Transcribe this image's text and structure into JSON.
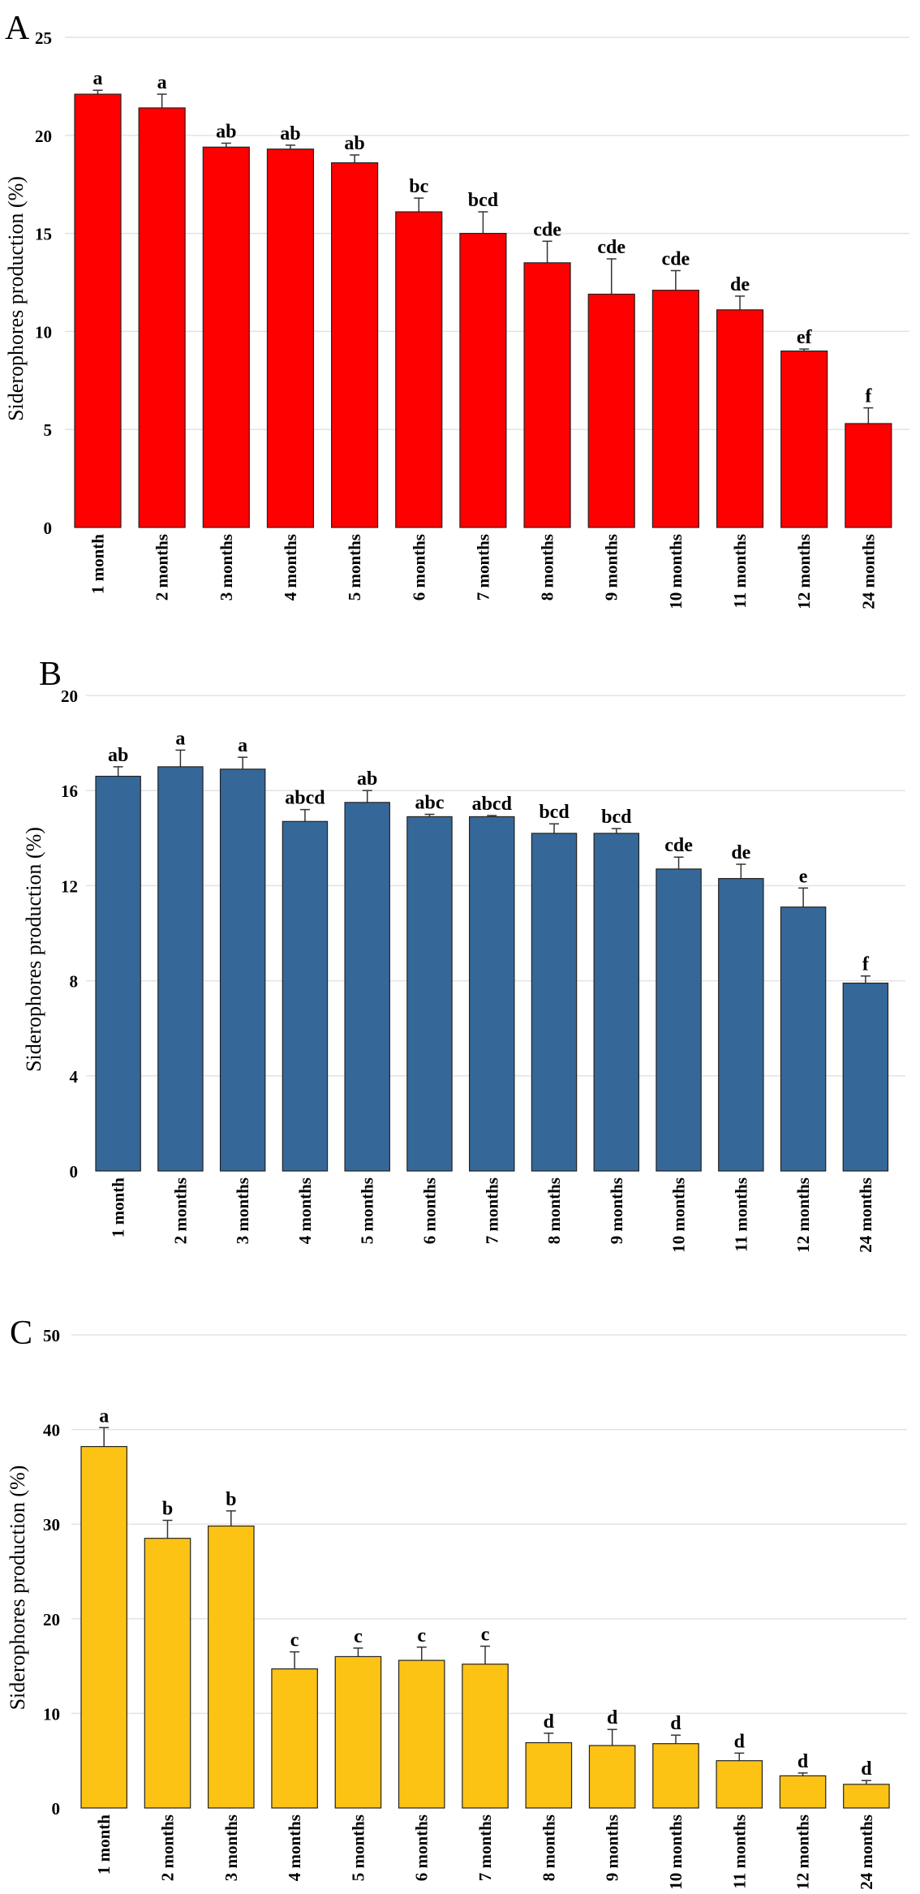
{
  "chart_data": [
    {
      "type": "bar",
      "panel_label": "A",
      "ylabel": "Siderophores production (%)",
      "xlabel": "",
      "ylim": [
        0,
        25
      ],
      "yticks": [
        0,
        5,
        10,
        15,
        20,
        25
      ],
      "grid": true,
      "color": "#FF0000",
      "categories": [
        "1 month",
        "2 months",
        "3 months",
        "4 months",
        "5 months",
        "6 months",
        "7 months",
        "8 months",
        "9 months",
        "10 months",
        "11 months",
        "12 months",
        "24 months"
      ],
      "values": [
        22.1,
        21.4,
        19.4,
        19.3,
        18.6,
        16.1,
        15.0,
        13.5,
        11.9,
        12.1,
        11.1,
        9.0,
        5.3
      ],
      "errors": [
        0.2,
        0.7,
        0.2,
        0.2,
        0.4,
        0.7,
        1.1,
        1.1,
        1.8,
        1.0,
        0.7,
        0.1,
        0.8
      ],
      "letters": [
        "a",
        "a",
        "ab",
        "ab",
        "ab",
        "bc",
        "bcd",
        "cde",
        "cde",
        "cde",
        "de",
        "ef",
        "f"
      ]
    },
    {
      "type": "bar",
      "panel_label": "B",
      "ylabel": "Siderophores production (%)",
      "xlabel": "",
      "ylim": [
        0,
        20
      ],
      "yticks": [
        0,
        4,
        8,
        12,
        16,
        20
      ],
      "grid": true,
      "color": "#356899",
      "categories": [
        "1 month",
        "2 months",
        "3 months",
        "4 months",
        "5 months",
        "6 months",
        "7 months",
        "8 months",
        "9 months",
        "10 months",
        "11 months",
        "12 months",
        "24 months"
      ],
      "values": [
        16.6,
        17.0,
        16.9,
        14.7,
        15.5,
        14.9,
        14.9,
        14.2,
        14.2,
        12.7,
        12.3,
        11.1,
        7.9
      ],
      "errors": [
        0.4,
        0.7,
        0.5,
        0.5,
        0.5,
        0.1,
        0.05,
        0.4,
        0.2,
        0.5,
        0.6,
        0.8,
        0.3
      ],
      "letters": [
        "ab",
        "a",
        "a",
        "abcd",
        "ab",
        "abc",
        "abcd",
        "bcd",
        "bcd",
        "cde",
        "de",
        "e",
        "f"
      ]
    },
    {
      "type": "bar",
      "panel_label": "C",
      "ylabel": "Siderophores production (%)",
      "xlabel": "",
      "ylim": [
        0,
        50
      ],
      "yticks": [
        0,
        10,
        20,
        30,
        40,
        50
      ],
      "grid": true,
      "color": "#FDC314",
      "categories": [
        "1 month",
        "2 months",
        "3 months",
        "4 months",
        "5 months",
        "6 months",
        "7 months",
        "8 months",
        "9 months",
        "10 months",
        "11 months",
        "12 months",
        "24 months"
      ],
      "values": [
        38.2,
        28.5,
        29.8,
        14.7,
        16.0,
        15.6,
        15.2,
        6.9,
        6.6,
        6.8,
        5.0,
        3.4,
        2.5
      ],
      "errors": [
        2.0,
        1.9,
        1.6,
        1.8,
        0.9,
        1.4,
        1.9,
        1.0,
        1.7,
        0.9,
        0.8,
        0.3,
        0.4
      ],
      "letters": [
        "a",
        "b",
        "b",
        "c",
        "c",
        "c",
        "c",
        "d",
        "d",
        "d",
        "d",
        "d",
        "d"
      ]
    }
  ]
}
